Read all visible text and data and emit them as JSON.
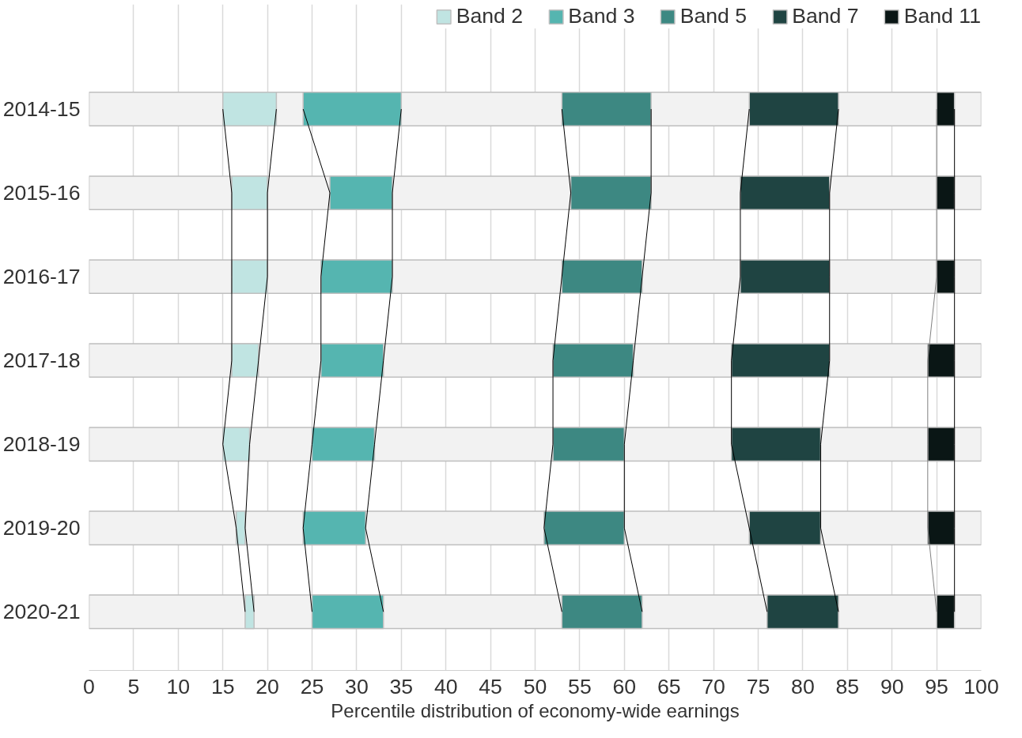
{
  "chart_data": {
    "type": "bar",
    "orientation": "horizontal",
    "categories": [
      "2014-15",
      "2015-16",
      "2016-17",
      "2017-18",
      "2018-19",
      "2019-20",
      "2020-21"
    ],
    "xlabel": "Percentile distribution of economy-wide earnings",
    "xlim": [
      0,
      100
    ],
    "xticks": [
      0,
      5,
      10,
      15,
      20,
      25,
      30,
      35,
      40,
      45,
      50,
      55,
      60,
      65,
      70,
      75,
      80,
      85,
      90,
      95,
      100
    ],
    "grid": "x",
    "legend": "top",
    "series": [
      {
        "type": "line",
        "color": "#000000",
        "values": [
          15,
          16,
          16,
          16,
          15,
          16.5,
          17.5
        ]
      },
      {
        "type": "line",
        "color": "#000000",
        "values": [
          21,
          20,
          20,
          19,
          18,
          17.5,
          18.5
        ]
      },
      {
        "type": "line",
        "color": "#000000",
        "values": [
          24,
          27,
          26,
          26,
          25,
          24,
          25
        ]
      },
      {
        "type": "line",
        "color": "#000000",
        "values": [
          35,
          34,
          34,
          33,
          32,
          31,
          33
        ]
      },
      {
        "type": "line",
        "color": "#000000",
        "values": [
          53,
          54,
          53,
          52,
          52,
          51,
          53
        ]
      },
      {
        "type": "line",
        "color": "#000000",
        "values": [
          63,
          63,
          62,
          61,
          60,
          60,
          62
        ]
      },
      {
        "type": "line",
        "color": "#000000",
        "values": [
          74,
          73,
          73,
          72,
          72,
          74,
          76
        ]
      },
      {
        "type": "line",
        "color": "#000000",
        "values": [
          84,
          83,
          83,
          83,
          82,
          82,
          84
        ]
      },
      {
        "type": "line",
        "color": "#808080",
        "values": [
          95,
          95,
          95,
          94,
          94,
          94,
          95
        ]
      },
      {
        "type": "line",
        "color": "#000000",
        "values": [
          97,
          97,
          97,
          97,
          97,
          97,
          97
        ]
      },
      {
        "color": "#f2f2f2",
        "base": [
          0,
          0,
          0,
          0,
          0,
          0,
          0
        ],
        "values": [
          100,
          100,
          100,
          100,
          100,
          100,
          100
        ]
      },
      {
        "name": "Band 2",
        "color": "#c0e4e2",
        "base": [
          15,
          16,
          16,
          16,
          15,
          16.5,
          17.5
        ],
        "values": [
          6,
          4,
          4,
          3,
          3,
          1,
          1
        ]
      },
      {
        "name": "Band 3",
        "color": "#55b5b0",
        "base": [
          24,
          27,
          26,
          26,
          25,
          24,
          25
        ],
        "values": [
          11,
          7,
          8,
          7,
          7,
          7,
          8
        ]
      },
      {
        "name": "Band 5",
        "color": "#3d8882",
        "base": [
          53,
          54,
          53,
          52,
          52,
          51,
          53
        ],
        "values": [
          10,
          9,
          9,
          9,
          8,
          9,
          9
        ]
      },
      {
        "name": "Band 7",
        "color": "#1f4442",
        "base": [
          74,
          73,
          73,
          72,
          72,
          74,
          76
        ],
        "values": [
          10,
          10,
          10,
          11,
          10,
          8,
          8
        ]
      },
      {
        "name": "Band 11",
        "color": "#0a1615",
        "base": [
          95,
          95,
          95,
          94,
          94,
          94,
          95
        ],
        "values": [
          2,
          2,
          2,
          3,
          3,
          3,
          2
        ]
      }
    ]
  }
}
